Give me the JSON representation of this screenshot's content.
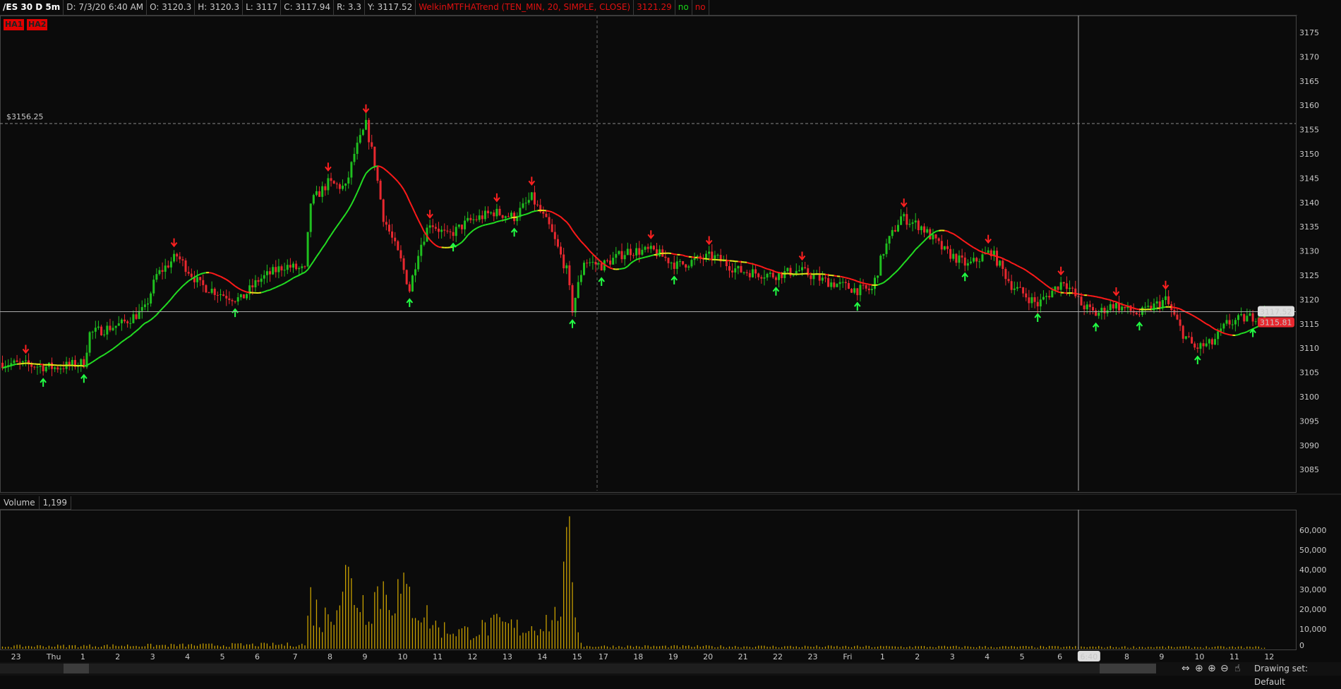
{
  "header": {
    "symbol": "/ES 30 D 5m",
    "date": "D: 7/3/20 6:40 AM",
    "open": "O: 3120.3",
    "high": "H: 3120.3",
    "low": "L: 3117",
    "close": "C: 3117.94",
    "range": "R: 3.3",
    "y": "Y: 3117.52",
    "study": "WelkinMTFHATrend (TEN_MIN, 20, SIMPLE, CLOSE)",
    "study_value": "3121.29",
    "flag1": "no",
    "flag2": "no"
  },
  "badges": [
    "HA1",
    "HA2"
  ],
  "price_line_label": "$3156.25",
  "volume_header": {
    "label": "Volume",
    "value": "1,199"
  },
  "bottom": {
    "drawing_set": "Drawing set: Default"
  },
  "colors": {
    "up": "#1fbf1f",
    "down": "#e8282f",
    "ma_up": "#22dd22",
    "ma_down": "#ff1a1a",
    "ma_flat": "#e6e619",
    "volume": "#c8a000",
    "arrow_up": "#22ff44",
    "arrow_down": "#ff2020"
  },
  "chart_data": [
    {
      "type": "candlestick",
      "bar_interval": "5m",
      "ylim": [
        3080,
        3178
      ],
      "y_ticks": [
        3175,
        3170,
        3165,
        3160,
        3155,
        3150,
        3145,
        3140,
        3135,
        3130,
        3125,
        3120,
        3115,
        3110,
        3105,
        3100,
        3095,
        3090,
        3085
      ],
      "price_marker": 3156.25,
      "last_price": 3115.81,
      "cursor_price": 3117.52,
      "x_ticks": [
        "23",
        "Thu",
        "1",
        "2",
        "3",
        "4",
        "5",
        "6",
        "7",
        "8",
        "9",
        "10",
        "11",
        "12",
        "13",
        "14",
        "15",
        "17",
        "18",
        "19",
        "20",
        "21",
        "22",
        "23",
        "Fri",
        "1",
        "2",
        "3",
        "4",
        "5",
        "6",
        "6:40",
        "8",
        "9",
        "10",
        "11",
        "12"
      ],
      "x_tick_bar_index": [
        5,
        18,
        28,
        40,
        52,
        64,
        76,
        88,
        101,
        113,
        125,
        138,
        150,
        162,
        174,
        186,
        198,
        207,
        219,
        231,
        243,
        255,
        267,
        279,
        291,
        303,
        315,
        327,
        339,
        351,
        364,
        374,
        387,
        399,
        412,
        424,
        436
      ],
      "close_path": [
        [
          0,
          3107
        ],
        [
          18,
          3106
        ],
        [
          28,
          3107
        ],
        [
          30,
          3113
        ],
        [
          41,
          3115
        ],
        [
          49,
          3118
        ],
        [
          53,
          3125
        ],
        [
          60,
          3129
        ],
        [
          68,
          3123
        ],
        [
          76,
          3121
        ],
        [
          82,
          3120
        ],
        [
          88,
          3124
        ],
        [
          97,
          3127
        ],
        [
          104,
          3126
        ],
        [
          106,
          3140
        ],
        [
          112,
          3144
        ],
        [
          118,
          3143
        ],
        [
          121,
          3150
        ],
        [
          125,
          3156
        ],
        [
          128,
          3148
        ],
        [
          131,
          3137
        ],
        [
          137,
          3128
        ],
        [
          140,
          3122
        ],
        [
          143,
          3130
        ],
        [
          147,
          3136
        ],
        [
          153,
          3133
        ],
        [
          160,
          3136
        ],
        [
          169,
          3138
        ],
        [
          176,
          3137
        ],
        [
          182,
          3141
        ],
        [
          188,
          3135
        ],
        [
          194,
          3126
        ],
        [
          196,
          3118
        ],
        [
          200,
          3128
        ],
        [
          206,
          3127
        ],
        [
          215,
          3130
        ],
        [
          224,
          3130
        ],
        [
          232,
          3127
        ],
        [
          244,
          3129
        ],
        [
          253,
          3126
        ],
        [
          265,
          3125
        ],
        [
          274,
          3126
        ],
        [
          282,
          3124
        ],
        [
          294,
          3122
        ],
        [
          299,
          3122
        ],
        [
          303,
          3130
        ],
        [
          309,
          3137
        ],
        [
          316,
          3135
        ],
        [
          324,
          3130
        ],
        [
          332,
          3127
        ],
        [
          340,
          3130
        ],
        [
          347,
          3123
        ],
        [
          356,
          3119
        ],
        [
          365,
          3124
        ],
        [
          371,
          3119
        ],
        [
          376,
          3117
        ],
        [
          382,
          3119
        ],
        [
          391,
          3117
        ],
        [
          400,
          3120
        ],
        [
          406,
          3113
        ],
        [
          410,
          3110
        ],
        [
          416,
          3111
        ],
        [
          421,
          3115
        ],
        [
          426,
          3116
        ],
        [
          434,
          3117
        ]
      ]
    },
    {
      "type": "bar",
      "title": "Volume",
      "ylim": [
        0,
        70000
      ],
      "y_ticks": [
        "60,000",
        "50,000",
        "40,000",
        "30,000",
        "20,000",
        "10,000",
        "0"
      ],
      "volume_path": [
        [
          0,
          1500
        ],
        [
          104,
          2500
        ],
        [
          106,
          30000
        ],
        [
          110,
          15000
        ],
        [
          118,
          42000
        ],
        [
          125,
          25000
        ],
        [
          130,
          36000
        ],
        [
          140,
          30000
        ],
        [
          150,
          12000
        ],
        [
          160,
          10000
        ],
        [
          170,
          14000
        ],
        [
          180,
          12000
        ],
        [
          190,
          18000
        ],
        [
          193,
          35000
        ],
        [
          195,
          67000
        ],
        [
          198,
          10000
        ],
        [
          200,
          1500
        ],
        [
          434,
          1000
        ]
      ]
    }
  ]
}
